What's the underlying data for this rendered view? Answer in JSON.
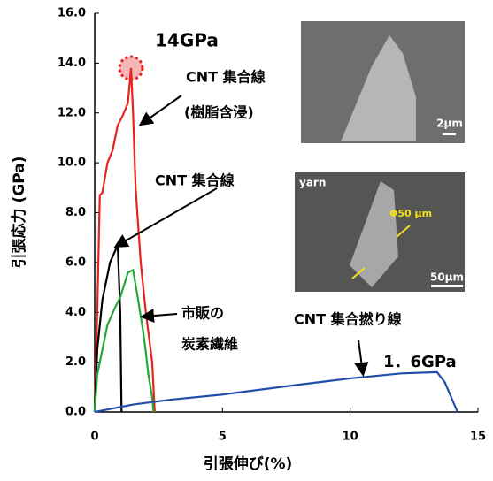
{
  "chart_data": {
    "type": "line",
    "xlabel": "引張伸び(%)",
    "ylabel": "引張応力 (GPa)",
    "xlim": [
      0,
      15
    ],
    "xticks": [
      0,
      5,
      10,
      15
    ],
    "ylim": [
      0,
      16
    ],
    "yticks": [
      {
        "value": 0,
        "label": "0.0"
      },
      {
        "value": 2,
        "label": "2.0"
      },
      {
        "value": 4,
        "label": "4.0"
      },
      {
        "value": 6,
        "label": "6.0"
      },
      {
        "value": 8,
        "label": "8.0"
      },
      {
        "value": 10,
        "label": "10.0"
      },
      {
        "value": 12,
        "label": "12.0"
      },
      {
        "value": 14,
        "label": "14.0"
      },
      {
        "value": 16,
        "label": "16.0"
      }
    ],
    "series": [
      {
        "color": "#e8221c",
        "x": [
          0,
          0.1,
          0.2,
          0.3,
          0.5,
          0.7,
          0.9,
          1.1,
          1.3,
          1.42,
          1.5,
          1.6,
          1.8,
          2.0,
          2.25,
          2.35
        ],
        "values": [
          0,
          4,
          8.7,
          8.8,
          10,
          10.5,
          11.5,
          11.9,
          12.4,
          13.8,
          12,
          9,
          6,
          4,
          2,
          0
        ]
      },
      {
        "color": "#000000",
        "x": [
          0,
          0.1,
          0.3,
          0.6,
          0.9,
          1.0,
          1.05
        ],
        "values": [
          0,
          2.5,
          4.5,
          6,
          6.7,
          4,
          0
        ]
      },
      {
        "color": "#22a83a",
        "x": [
          0,
          0.1,
          0.3,
          0.5,
          0.8,
          1.0,
          1.3,
          1.5,
          1.7,
          1.9,
          2.0,
          2.1,
          2.25,
          2.3
        ],
        "values": [
          0,
          1.5,
          2.5,
          3.5,
          4.2,
          4.6,
          5.6,
          5.7,
          4.5,
          3.2,
          2.4,
          1.5,
          0.6,
          0
        ]
      },
      {
        "color": "#1f4fa8",
        "x": [
          0,
          0.5,
          1.5,
          3,
          5,
          8,
          10,
          12,
          13.4,
          13.7,
          14.2
        ],
        "values": [
          0,
          0.1,
          0.3,
          0.5,
          0.7,
          1.1,
          1.35,
          1.55,
          1.6,
          1.2,
          0
        ]
      }
    ],
    "annotations": [
      "14GPa",
      "CNT 集合線",
      "(樹脂含浸)",
      "CNT 集合線",
      "市販の",
      "炭素繊維",
      "CNT 集合撚り線",
      "1．6GPa"
    ],
    "insets": [
      {
        "texts": [
          "2μm"
        ]
      },
      {
        "texts": [
          "yarn",
          "Φ50 μm",
          "50μm"
        ]
      }
    ]
  }
}
